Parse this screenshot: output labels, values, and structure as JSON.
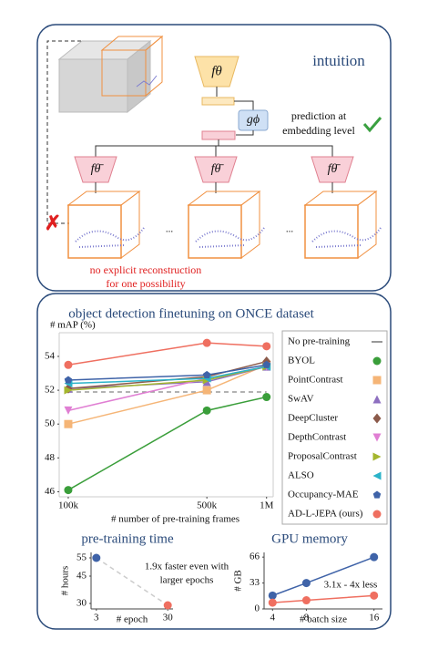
{
  "diagram": {
    "title": "intuition",
    "encoder": "fθ",
    "predictor": "gϕ",
    "prediction_note": [
      "prediction at",
      "embedding level"
    ],
    "target_encoders": [
      "fθ̄",
      "fθ̄",
      "fθ̄"
    ],
    "ellipses": [
      "...",
      "..."
    ],
    "negative_note": [
      "no explicit reconstruction",
      "for one possibility"
    ]
  },
  "chart_data": [
    {
      "type": "line",
      "title": "object detection finetuning on ONCE dataset",
      "y_label": "# mAP (%)",
      "x_label": "# number of pre-training frames",
      "xscale": "log",
      "x": [
        100000,
        500000,
        1000000
      ],
      "xlim": [
        90000,
        1080000
      ],
      "xticks": [
        {
          "value": 100000,
          "label": "100k"
        },
        {
          "value": 500000,
          "label": "500k"
        },
        {
          "value": 1000000,
          "label": "1M"
        }
      ],
      "ylim": [
        45.7,
        55.4
      ],
      "yticks": [
        46,
        48,
        50,
        52,
        54
      ],
      "legend": "right",
      "series": [
        {
          "name": "No pre-training",
          "color": "#999999",
          "marker": "dash",
          "values": [
            51.9,
            51.9,
            51.9
          ]
        },
        {
          "name": "BYOL",
          "color": "#3a9e3a",
          "marker": "circle",
          "values": [
            46.1,
            50.8,
            51.6
          ]
        },
        {
          "name": "PointContrast",
          "color": "#f5b577",
          "marker": "square",
          "values": [
            50.0,
            52.0,
            53.5
          ]
        },
        {
          "name": "SwAV",
          "color": "#8e6fc0",
          "marker": "triangle-up",
          "values": [
            52.1,
            52.5,
            53.4
          ]
        },
        {
          "name": "DeepCluster",
          "color": "#8b5a4a",
          "marker": "diamond",
          "values": [
            52.1,
            52.8,
            53.7
          ]
        },
        {
          "name": "DepthContrast",
          "color": "#e07fd3",
          "marker": "triangle-down",
          "values": [
            50.8,
            52.7,
            53.4
          ]
        },
        {
          "name": "ProposalContrast",
          "color": "#a4b62e",
          "marker": "triangle-right",
          "values": [
            52.0,
            52.6,
            53.4
          ]
        },
        {
          "name": "ALSO",
          "color": "#2bb3c9",
          "marker": "triangle-left",
          "values": [
            52.4,
            52.7,
            53.4
          ]
        },
        {
          "name": "Occupancy-MAE",
          "color": "#3f63a8",
          "marker": "pentagon",
          "values": [
            52.6,
            52.9,
            53.5
          ]
        },
        {
          "name": "AD-L-JEPA (ours)",
          "color": "#ef6f60",
          "marker": "circle",
          "values": [
            53.5,
            54.8,
            54.6
          ]
        }
      ]
    },
    {
      "type": "scatter",
      "title": "pre-training time",
      "y_label": "# hours",
      "x_label": "# epoch",
      "x": [
        3,
        30
      ],
      "xlim": [
        1,
        32
      ],
      "xticks": [
        3,
        30
      ],
      "ylim": [
        27,
        58
      ],
      "yticks": [
        30,
        45,
        55
      ],
      "values": [
        55,
        29
      ],
      "colors": [
        "#3f63a8",
        "#ef6f60"
      ],
      "annotation": [
        "1.9x faster even with",
        "larger epochs"
      ]
    },
    {
      "type": "line",
      "title": "GPU memory",
      "y_label": "# GB",
      "x_label": "# batch size",
      "x": [
        4,
        8,
        16
      ],
      "xlim": [
        3,
        17
      ],
      "xticks": [
        4,
        8,
        16
      ],
      "ylim": [
        0,
        72
      ],
      "yticks": [
        0,
        33,
        66
      ],
      "series": [
        {
          "color": "#3f63a8",
          "marker": "circle",
          "values": [
            17,
            33,
            66
          ]
        },
        {
          "color": "#ef6f60",
          "marker": "circle",
          "values": [
            8,
            11,
            17
          ]
        }
      ],
      "annotation": [
        "3.1x - 4x less"
      ]
    }
  ]
}
